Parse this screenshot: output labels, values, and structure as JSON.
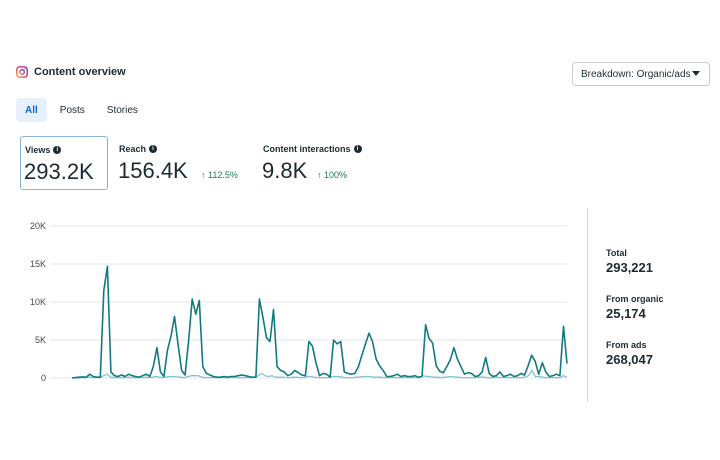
{
  "header": {
    "title": "Content overview",
    "breakdown_label": "Breakdown: Organic/ads"
  },
  "tabs": [
    {
      "label": "All",
      "active": true
    },
    {
      "label": "Posts",
      "active": false
    },
    {
      "label": "Stories",
      "active": false
    }
  ],
  "metrics": [
    {
      "label": "Views",
      "value": "293.2K",
      "change": "",
      "selected": true
    },
    {
      "label": "Reach",
      "value": "156.4K",
      "change": "↑ 112.5%",
      "selected": false
    },
    {
      "label": "Content interactions",
      "value": "9.8K",
      "change": "↑ 100%",
      "selected": false
    }
  ],
  "summary": {
    "total_label": "Total",
    "total_value": "293,221",
    "organic_label": "From organic",
    "organic_value": "25,174",
    "ads_label": "From ads",
    "ads_value": "268,047"
  },
  "colors": {
    "series_total": "#137a82",
    "series_organic": "#7fc4d6",
    "accent": "#0a6acc",
    "positive": "#1d7a4e"
  },
  "chart_data": {
    "type": "line",
    "title": "",
    "xlabel": "",
    "ylabel": "",
    "ylim": [
      0,
      20000
    ],
    "yticks": [
      "0",
      "5K",
      "10K",
      "15K",
      "20K"
    ],
    "ytick_values": [
      0,
      5000,
      10000,
      15000,
      20000
    ],
    "grid": true,
    "series": [
      {
        "color": "#137a82",
        "values": [
          0,
          50,
          100,
          150,
          100,
          500,
          200,
          100,
          100,
          11500,
          14700,
          800,
          300,
          200,
          400,
          200,
          500,
          300,
          200,
          100,
          300,
          500,
          200,
          1500,
          4000,
          800,
          200,
          3700,
          5500,
          8100,
          4400,
          1000,
          400,
          5000,
          10400,
          8400,
          10200,
          1500,
          600,
          400,
          200,
          100,
          100,
          200,
          100,
          200,
          200,
          300,
          400,
          300,
          200,
          100,
          100,
          10400,
          8000,
          5300,
          4800,
          9000,
          1500,
          1000,
          800,
          300,
          500,
          1000,
          700,
          400,
          300,
          4800,
          4200,
          2000,
          300,
          600,
          500,
          100,
          5000,
          4500,
          4800,
          800,
          600,
          500,
          600,
          1500,
          3000,
          4500,
          5900,
          4800,
          2500,
          1600,
          1000,
          200,
          200,
          300,
          500,
          200,
          300,
          200,
          200,
          300,
          100,
          200,
          7000,
          5200,
          4600,
          1600,
          900,
          700,
          1500,
          2400,
          4000,
          2500,
          1500,
          500,
          700,
          600,
          200,
          300,
          800,
          2700,
          600,
          200,
          300,
          800,
          200,
          300,
          500,
          200,
          300,
          600,
          400,
          1600,
          3000,
          2200,
          500,
          2000,
          800,
          200,
          300,
          500,
          300,
          6800,
          1900
        ],
        "name": ""
      },
      {
        "color": "#7fc4d6",
        "values": [
          0,
          0,
          0,
          50,
          50,
          100,
          50,
          50,
          50,
          300,
          500,
          100,
          50,
          50,
          50,
          50,
          100,
          50,
          50,
          50,
          50,
          100,
          50,
          100,
          200,
          100,
          50,
          150,
          200,
          200,
          150,
          100,
          50,
          200,
          300,
          300,
          300,
          100,
          50,
          50,
          50,
          50,
          50,
          50,
          50,
          50,
          50,
          50,
          50,
          50,
          50,
          50,
          50,
          300,
          600,
          300,
          200,
          300,
          100,
          100,
          100,
          50,
          50,
          100,
          100,
          50,
          50,
          200,
          200,
          100,
          50,
          50,
          50,
          50,
          200,
          200,
          200,
          100,
          50,
          50,
          50,
          100,
          150,
          200,
          200,
          200,
          100,
          100,
          100,
          50,
          50,
          50,
          50,
          50,
          50,
          50,
          50,
          50,
          50,
          50,
          300,
          200,
          200,
          100,
          100,
          50,
          100,
          150,
          200,
          150,
          100,
          50,
          50,
          50,
          50,
          50,
          100,
          150,
          50,
          50,
          50,
          100,
          50,
          50,
          50,
          50,
          50,
          50,
          50,
          100,
          300,
          1000,
          200,
          200,
          100,
          50,
          50,
          50,
          50,
          50,
          300,
          100
        ],
        "name": ""
      }
    ]
  }
}
